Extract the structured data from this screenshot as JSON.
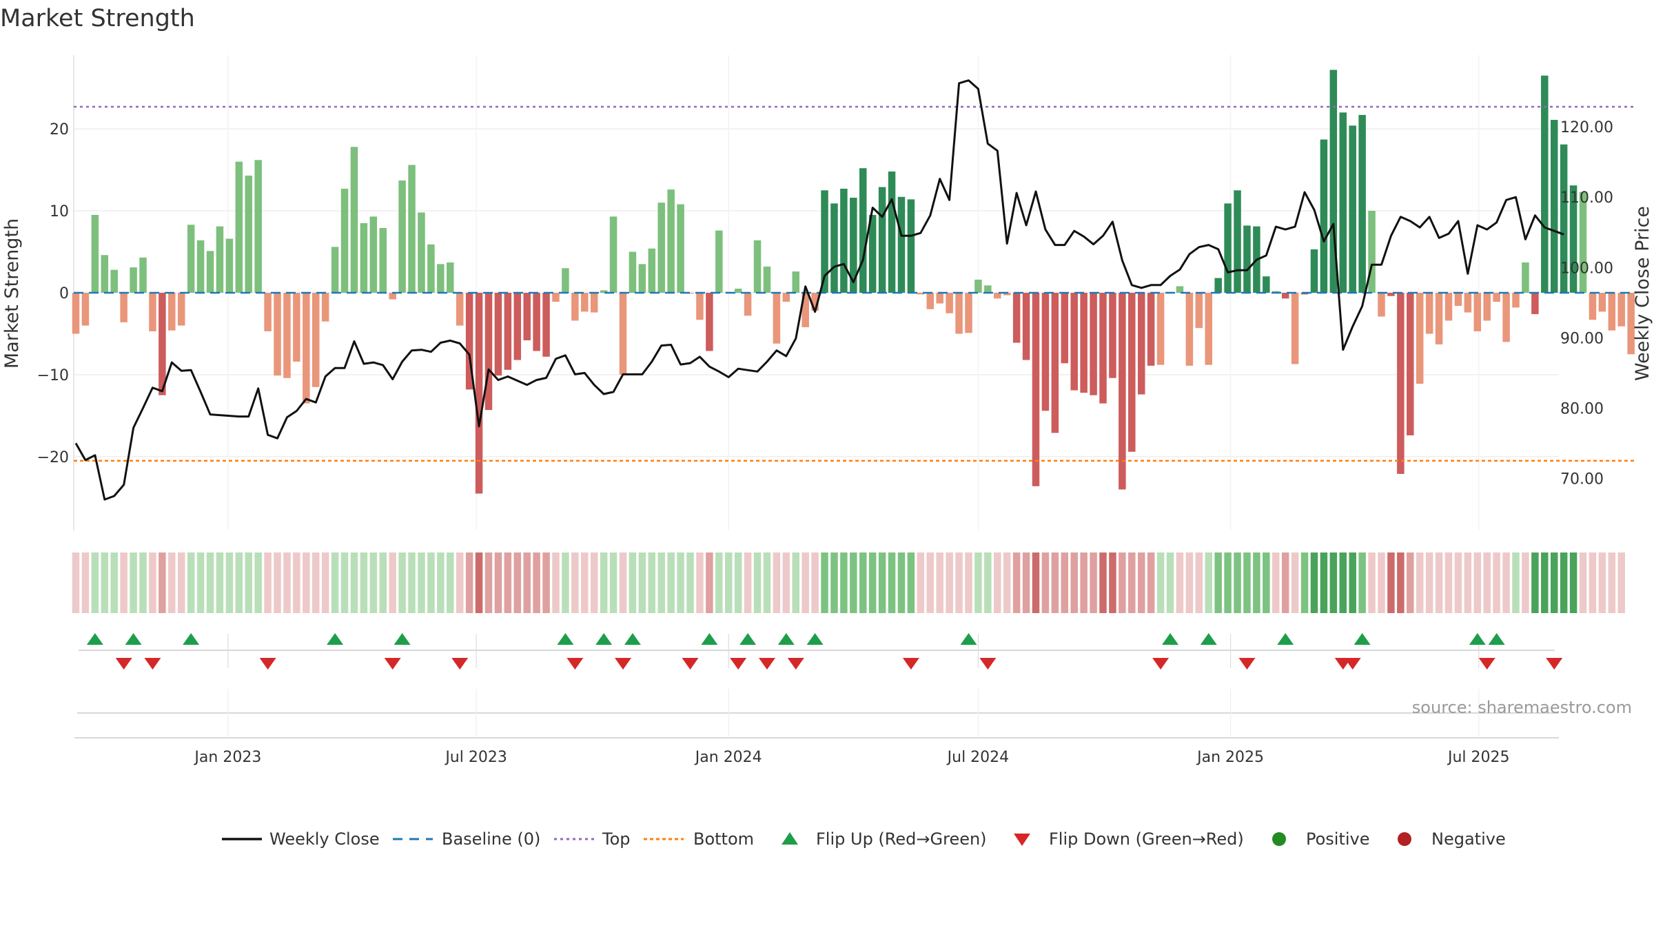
{
  "title": "Market Strength",
  "source": "source: sharemaestro.com",
  "colors": {
    "strong_pos": "#2e8b57",
    "weak_pos": "#7dbf7d",
    "strong_neg": "#cd5c5c",
    "weak_neg": "#e9967a",
    "close": "#111111",
    "baseline": "#1f77b4",
    "top": "#9467bd",
    "bottom": "#ff7f0e",
    "flip_up": "#1e9e4a",
    "flip_down": "#d62728",
    "positive": "#228b22",
    "negative": "#b22222"
  },
  "chart_data": {
    "type": "bar",
    "x_start": "2022-09-12",
    "x_step_days": 7,
    "x_ticks": [
      "Jan 2023",
      "Jul 2023",
      "Jan 2024",
      "Jul 2024",
      "Jan 2025",
      "Jul 2025"
    ],
    "x_tick_dates": [
      "2023-01-01",
      "2023-07-01",
      "2024-01-01",
      "2024-07-01",
      "2025-01-01",
      "2025-07-01"
    ],
    "left_axis": {
      "label": "Market Strength",
      "ticks": [
        20,
        10,
        0,
        -10,
        -20
      ],
      "tick_labels": [
        "20",
        "10",
        "0",
        "−10",
        "−20"
      ],
      "range": [
        -29,
        29
      ]
    },
    "right_axis": {
      "label": "Weekly Close Price",
      "ticks": [
        120,
        110,
        100,
        90,
        80,
        70
      ],
      "tick_labels": [
        "120.00",
        "110.00",
        "100.00",
        "90.00",
        "80.00",
        "70.00"
      ],
      "range": [
        62.6,
        130.2
      ]
    },
    "top_level": 22.7,
    "bottom_level": -20.5,
    "strength": [
      -5,
      -4,
      9.5,
      4.6,
      2.8,
      -3.6,
      3.1,
      4.3,
      -4.7,
      -12.5,
      -4.6,
      -4,
      8.3,
      6.4,
      5.1,
      8.1,
      6.6,
      16,
      14.3,
      16.2,
      -4.7,
      -10.1,
      -10.4,
      -8.4,
      -13.5,
      -11.5,
      -3.5,
      5.6,
      12.7,
      17.8,
      8.5,
      9.3,
      7.9,
      -0.8,
      13.7,
      15.6,
      9.8,
      5.9,
      3.5,
      3.7,
      -4,
      -11.8,
      -24.5,
      -14.3,
      -10.1,
      -9.4,
      -8.2,
      -5.8,
      -7.1,
      -7.8,
      -1.1,
      3,
      -3.4,
      -2.3,
      -2.4,
      0.3,
      9.3,
      -10,
      5,
      3.5,
      5.4,
      11,
      12.6,
      10.8,
      -0.1,
      -3.3,
      -7.1,
      7.6,
      0.1,
      0.5,
      -2.8,
      6.4,
      3.2,
      -6.2,
      -1.1,
      2.6,
      -4.2,
      -2.2,
      12.5,
      10.9,
      12.7,
      11.6,
      15.2,
      9.5,
      12.9,
      14.8,
      11.7,
      11.4,
      -0.2,
      -2,
      -1.3,
      -2.5,
      -5,
      -4.9,
      1.6,
      0.9,
      -0.7,
      -0.3,
      -6.1,
      -8.2,
      -23.6,
      -14.4,
      -17.1,
      -8.6,
      -11.9,
      -12.2,
      -12.5,
      -13.5,
      -10.4,
      -24,
      -19.4,
      -12.4,
      -8.9,
      -8.8,
      0.1,
      0.8,
      -8.9,
      -4.3,
      -8.8,
      1.8,
      10.9,
      12.5,
      8.2,
      8.1,
      2,
      0.2,
      -0.7,
      -8.7,
      -0.2,
      5.3,
      18.7,
      27.2,
      22,
      20.4,
      21.7,
      10,
      -2.9,
      -0.4,
      -22.1,
      -17.4,
      -11.1,
      -5,
      -6.3,
      -3.4,
      -1.6,
      -2.4,
      -4.7,
      -3.4,
      -1.1,
      -6,
      -1.8,
      3.7,
      -2.6,
      26.5,
      21.1,
      18.1,
      13.1,
      12.3,
      -3.3,
      -2.3,
      -4.6,
      -4.1,
      -7.5
    ],
    "weekly_close": [
      75,
      72.6,
      73.3,
      67,
      67.5,
      69.1,
      77.2,
      80,
      82.9,
      82.4,
      86.5,
      85.3,
      85.4,
      82.3,
      79.1,
      79,
      78.9,
      78.8,
      78.8,
      82.8,
      76.2,
      75.7,
      78.7,
      79.6,
      81.3,
      80.8,
      84.5,
      85.7,
      85.7,
      89.5,
      86.3,
      86.5,
      86.1,
      84.1,
      86.6,
      88.2,
      88.3,
      88,
      89.3,
      89.6,
      89.2,
      87.6,
      77.4,
      85.5,
      84,
      84.5,
      83.9,
      83.3,
      84,
      84.3,
      87,
      87.5,
      84.8,
      85,
      83.3,
      82,
      82.3,
      84.8,
      84.8,
      84.8,
      86.6,
      88.9,
      89,
      86.2,
      86.4,
      87.3,
      85.9,
      85.2,
      84.4,
      85.6,
      85.4,
      85.2,
      86.6,
      88.2,
      87.4,
      89.9,
      97.3,
      93.7,
      98.8,
      100.1,
      100.5,
      97.9,
      101.1,
      108.5,
      107.2,
      109.7,
      104.5,
      104.5,
      104.9,
      107.4,
      112.6,
      109.6,
      126.2,
      126.6,
      125.4,
      117.6,
      116.6,
      103.4,
      110.6,
      106,
      110.8,
      105.4,
      103.2,
      103.2,
      105.2,
      104.4,
      103.3,
      104.5,
      106.5,
      101,
      97.5,
      97.1,
      97.5,
      97.5,
      98.8,
      99.7,
      101.9,
      102.9,
      103.2,
      102.6,
      99.3,
      99.6,
      99.6,
      101.1,
      101.7,
      105.8,
      105.4,
      105.8,
      110.7,
      108.2,
      103.7,
      106.2,
      88.3,
      91.6,
      94.5,
      100.4,
      100.4,
      104.5,
      107.2,
      106.6,
      105.7,
      107.2,
      104.2,
      104.8,
      106.6,
      99.1,
      106,
      105.4,
      106.4,
      109.6,
      110,
      104,
      107.4,
      105.7,
      105.2,
      104.7
    ],
    "regime": [
      -1,
      -1,
      1,
      1,
      1,
      -1,
      1,
      1,
      -1,
      -2,
      -1,
      -1,
      1,
      1,
      1,
      1,
      1,
      1,
      1,
      1,
      -1,
      -1,
      -1,
      -1,
      -1,
      -1,
      -1,
      1,
      1,
      1,
      1,
      1,
      1,
      -1,
      1,
      1,
      1,
      1,
      1,
      1,
      -1,
      -2,
      -3,
      -2,
      -2,
      -2,
      -2,
      -2,
      -2,
      -2,
      -1,
      1,
      -1,
      -1,
      -1,
      1,
      1,
      -1,
      1,
      1,
      1,
      1,
      1,
      1,
      1,
      -1,
      -2,
      1,
      1,
      1,
      -1,
      1,
      1,
      -1,
      -1,
      1,
      -1,
      -1,
      2,
      2,
      2,
      2,
      2,
      2,
      2,
      2,
      2,
      2,
      -1,
      -1,
      -1,
      -1,
      -1,
      -1,
      1,
      1,
      -1,
      -1,
      -2,
      -2,
      -3,
      -2,
      -2,
      -2,
      -2,
      -2,
      -2,
      -3,
      -3,
      -2,
      -2,
      -2,
      -2,
      1,
      1,
      -1,
      -1,
      -1,
      1,
      2,
      2,
      2,
      2,
      2,
      2,
      -1,
      -2,
      -1,
      2,
      3,
      3,
      3,
      3,
      3,
      2,
      -1,
      -1,
      -3,
      -3,
      -2,
      -1,
      -1,
      -1,
      -1,
      -1,
      -1,
      -1,
      -1,
      -1,
      -1,
      1,
      -1,
      3,
      3,
      3,
      3,
      3,
      -1,
      -1,
      -1,
      -1,
      -1
    ],
    "flip_up_idx": [
      2,
      6,
      12,
      27,
      34,
      51,
      55,
      58,
      66,
      70,
      74,
      77,
      93,
      114,
      118,
      126,
      134,
      146,
      148
    ],
    "flip_down_idx": [
      5,
      8,
      20,
      33,
      40,
      52,
      57,
      64,
      69,
      72,
      75,
      87,
      95,
      113,
      122,
      132,
      133,
      147,
      154
    ],
    "legend": [
      "Weekly Close",
      "Baseline (0)",
      "Top",
      "Bottom",
      "Flip Up (Red→Green)",
      "Flip Down (Green→Red)",
      "Positive",
      "Negative"
    ]
  }
}
